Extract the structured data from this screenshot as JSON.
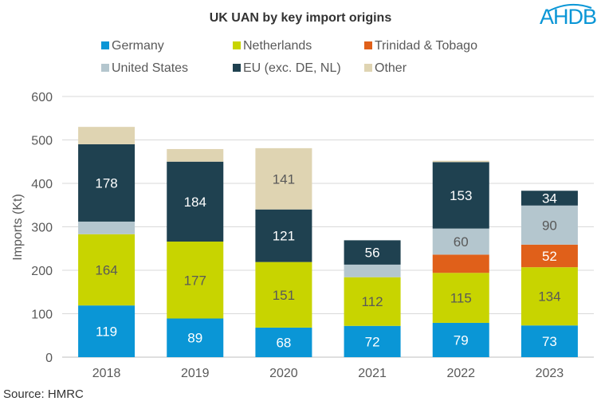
{
  "chart_data": {
    "type": "bar",
    "stacked": true,
    "title": "UK UAN by key import origins",
    "ylabel": "Imports (Kt)",
    "xlabel": "",
    "ylim": [
      0,
      600
    ],
    "yticks": [
      0,
      100,
      200,
      300,
      400,
      500,
      600
    ],
    "grid": true,
    "legend_position": "top",
    "categories": [
      "2018",
      "2019",
      "2020",
      "2021",
      "2022",
      "2023"
    ],
    "series": [
      {
        "name": "Germany",
        "color": "#0a96d6",
        "values": [
          119,
          89,
          68,
          72,
          79,
          73
        ],
        "labeled": [
          true,
          true,
          true,
          true,
          true,
          true
        ],
        "label_color": "#ffffff"
      },
      {
        "name": "Netherlands",
        "color": "#c8d400",
        "values": [
          164,
          177,
          151,
          112,
          115,
          134
        ],
        "labeled": [
          true,
          true,
          true,
          true,
          true,
          true
        ],
        "label_color": "#595959"
      },
      {
        "name": "Trinidad & Tobago",
        "color": "#e0601a",
        "values": [
          0,
          0,
          0,
          0,
          42,
          52
        ],
        "labeled": [
          false,
          false,
          false,
          false,
          false,
          true
        ],
        "label_color": "#ffffff"
      },
      {
        "name": "United States",
        "color": "#b4c6ce",
        "values": [
          29,
          0,
          0,
          29,
          60,
          90
        ],
        "labeled": [
          false,
          false,
          false,
          false,
          true,
          true
        ],
        "label_color": "#595959"
      },
      {
        "name": "EU (exc. DE, NL)",
        "color": "#1f4150",
        "values": [
          178,
          184,
          121,
          56,
          153,
          34
        ],
        "labeled": [
          true,
          true,
          true,
          true,
          true,
          true
        ],
        "label_color": "#ffffff"
      },
      {
        "name": "Other",
        "color": "#dfd4b2",
        "values": [
          40,
          29,
          141,
          0,
          3,
          0
        ],
        "labeled": [
          false,
          false,
          true,
          false,
          false,
          false
        ],
        "label_color": "#595959"
      }
    ],
    "source": "Source: HMRC"
  },
  "logo": {
    "text": "AHDB",
    "color": "#0a96d6"
  }
}
